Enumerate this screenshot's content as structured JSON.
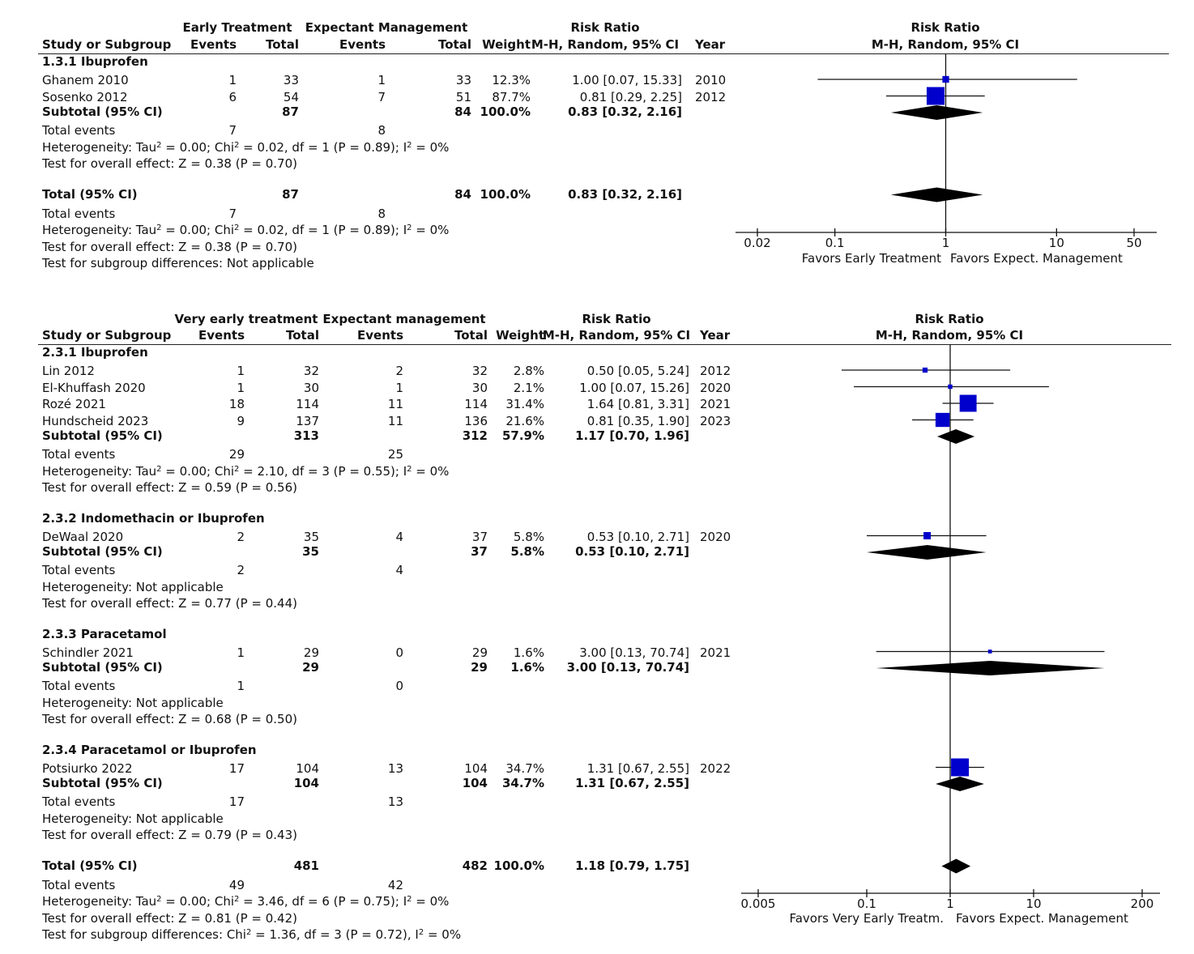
{
  "colors": {
    "square": "#0000cc",
    "diamond": "#000000",
    "line": "#111111"
  },
  "panel1": {
    "headers": {
      "group_label": "Study or Subgroup",
      "exp_group": "Early Treatment",
      "ctrl_group": "Expectant Management",
      "events": "Events",
      "total": "Total",
      "weight": "Weight",
      "rr_title": "Risk Ratio",
      "rr_method": "M-H, Random, 95% CI",
      "year": "Year",
      "plot_title": "Risk Ratio",
      "plot_method": "M-H, Random, 95% CI"
    },
    "subgroups": [
      {
        "title": "1.3.1 Ibuprofen",
        "studies": [
          {
            "name": "Ghanem 2010",
            "e_events": "1",
            "e_total": "33",
            "c_events": "1",
            "c_total": "33",
            "weight": "12.3%",
            "ci": "1.00 [0.07, 15.33]",
            "year": "2010"
          },
          {
            "name": "Sosenko 2012",
            "e_events": "6",
            "e_total": "54",
            "c_events": "7",
            "c_total": "51",
            "weight": "87.7%",
            "ci": "0.81 [0.29, 2.25]",
            "year": "2012"
          }
        ],
        "subtotal": {
          "label": "Subtotal (95% CI)",
          "e_total": "87",
          "c_total": "84",
          "weight": "100.0%",
          "ci": "0.83 [0.32, 2.16]"
        },
        "events_label": "Total events",
        "e_events": "7",
        "c_events": "8",
        "heterogeneity": "Heterogeneity: Tau² = 0.00; Chi² = 0.02, df = 1 (P = 0.89); I² = 0%",
        "overall": "Test for overall effect: Z = 0.38 (P = 0.70)"
      }
    ],
    "total": {
      "label": "Total (95% CI)",
      "e_total": "87",
      "c_total": "84",
      "weight": "100.0%",
      "ci": "0.83 [0.32, 2.16]"
    },
    "total_events_label": "Total events",
    "total_e_events": "7",
    "total_c_events": "8",
    "total_heterogeneity": "Heterogeneity: Tau² = 0.00; Chi² = 0.02, df = 1 (P = 0.89); I² = 0%",
    "total_overall": "Test for overall effect: Z = 0.38 (P = 0.70)",
    "subgroup_diff": "Test for subgroup differences: Not applicable",
    "axis_ticks": [
      "0.02",
      "0.1",
      "1",
      "10",
      "50"
    ],
    "favors_left": "Favors Early Treatment",
    "favors_right": "Favors Expect. Management"
  },
  "panel2": {
    "headers": {
      "group_label": "Study or Subgroup",
      "exp_group": "Very early treatment",
      "ctrl_group": "Expectant management",
      "events": "Events",
      "total": "Total",
      "weight": "Weight",
      "rr_title": "Risk Ratio",
      "rr_method": "M-H, Random, 95% CI",
      "year": "Year",
      "plot_title": "Risk Ratio",
      "plot_method": "M-H, Random, 95% CI"
    },
    "subgroups": [
      {
        "title": "2.3.1 Ibuprofen",
        "studies": [
          {
            "name": "Lin 2012",
            "e_events": "1",
            "e_total": "32",
            "c_events": "2",
            "c_total": "32",
            "weight": "2.8%",
            "ci": "0.50 [0.05, 5.24]",
            "year": "2012"
          },
          {
            "name": "El-Khuffash 2020",
            "e_events": "1",
            "e_total": "30",
            "c_events": "1",
            "c_total": "30",
            "weight": "2.1%",
            "ci": "1.00 [0.07, 15.26]",
            "year": "2020"
          },
          {
            "name": "Rozé 2021",
            "e_events": "18",
            "e_total": "114",
            "c_events": "11",
            "c_total": "114",
            "weight": "31.4%",
            "ci": "1.64 [0.81, 3.31]",
            "year": "2021"
          },
          {
            "name": "Hundscheid 2023",
            "e_events": "9",
            "e_total": "137",
            "c_events": "11",
            "c_total": "136",
            "weight": "21.6%",
            "ci": "0.81 [0.35, 1.90]",
            "year": "2023"
          }
        ],
        "subtotal": {
          "label": "Subtotal (95% CI)",
          "e_total": "313",
          "c_total": "312",
          "weight": "57.9%",
          "ci": "1.17 [0.70, 1.96]"
        },
        "events_label": "Total events",
        "e_events": "29",
        "c_events": "25",
        "heterogeneity": "Heterogeneity: Tau² = 0.00; Chi² = 2.10, df = 3 (P = 0.55); I² = 0%",
        "overall": "Test for overall effect: Z = 0.59 (P = 0.56)"
      },
      {
        "title": "2.3.2 Indomethacin or Ibuprofen",
        "studies": [
          {
            "name": "DeWaal 2020",
            "e_events": "2",
            "e_total": "35",
            "c_events": "4",
            "c_total": "37",
            "weight": "5.8%",
            "ci": "0.53 [0.10, 2.71]",
            "year": "2020"
          }
        ],
        "subtotal": {
          "label": "Subtotal (95% CI)",
          "e_total": "35",
          "c_total": "37",
          "weight": "5.8%",
          "ci": "0.53 [0.10, 2.71]"
        },
        "events_label": "Total events",
        "e_events": "2",
        "c_events": "4",
        "heterogeneity": "Heterogeneity: Not applicable",
        "overall": "Test for overall effect: Z = 0.77 (P = 0.44)"
      },
      {
        "title": "2.3.3 Paracetamol",
        "studies": [
          {
            "name": "Schindler 2021",
            "e_events": "1",
            "e_total": "29",
            "c_events": "0",
            "c_total": "29",
            "weight": "1.6%",
            "ci": "3.00 [0.13, 70.74]",
            "year": "2021"
          }
        ],
        "subtotal": {
          "label": "Subtotal (95% CI)",
          "e_total": "29",
          "c_total": "29",
          "weight": "1.6%",
          "ci": "3.00 [0.13, 70.74]"
        },
        "events_label": "Total events",
        "e_events": "1",
        "c_events": "0",
        "heterogeneity": "Heterogeneity: Not applicable",
        "overall": "Test for overall effect: Z = 0.68 (P = 0.50)"
      },
      {
        "title": "2.3.4 Paracetamol or Ibuprofen",
        "studies": [
          {
            "name": "Potsiurko 2022",
            "e_events": "17",
            "e_total": "104",
            "c_events": "13",
            "c_total": "104",
            "weight": "34.7%",
            "ci": "1.31 [0.67, 2.55]",
            "year": "2022"
          }
        ],
        "subtotal": {
          "label": "Subtotal (95% CI)",
          "e_total": "104",
          "c_total": "104",
          "weight": "34.7%",
          "ci": "1.31 [0.67, 2.55]"
        },
        "events_label": "Total events",
        "e_events": "17",
        "c_events": "13",
        "heterogeneity": "Heterogeneity: Not applicable",
        "overall": "Test for overall effect: Z = 0.79 (P = 0.43)"
      }
    ],
    "total": {
      "label": "Total (95% CI)",
      "e_total": "481",
      "c_total": "482",
      "weight": "100.0%",
      "ci": "1.18 [0.79, 1.75]"
    },
    "total_events_label": "Total events",
    "total_e_events": "49",
    "total_c_events": "42",
    "total_heterogeneity": "Heterogeneity: Tau² = 0.00; Chi² = 3.46, df = 6 (P = 0.75); I² = 0%",
    "total_overall": "Test for overall effect: Z = 0.81 (P = 0.42)",
    "subgroup_diff": "Test for subgroup differences: Chi² = 1.36, df = 3 (P = 0.72), I² = 0%",
    "axis_ticks": [
      "0.005",
      "0.1",
      "1",
      "10",
      "200"
    ],
    "favors_left": "Favors Very Early Treatm.",
    "favors_right": "Favors Expect. Management"
  },
  "chart_data": [
    {
      "type": "forest",
      "title": "Risk Ratio M-H, Random, 95% CI",
      "x_scale": "log",
      "xlim": [
        0.02,
        50
      ],
      "x_ticks": [
        0.02,
        0.1,
        1,
        10,
        50
      ],
      "xlabel_left": "Favors Early Treatment",
      "xlabel_right": "Favors Expect. Management",
      "studies": [
        {
          "name": "Ghanem 2010",
          "rr": 1.0,
          "lo": 0.07,
          "hi": 15.33,
          "weight": 12.3
        },
        {
          "name": "Sosenko 2012",
          "rr": 0.81,
          "lo": 0.29,
          "hi": 2.25,
          "weight": 87.7
        }
      ],
      "subtotals": [
        {
          "name": "Subtotal (95% CI)",
          "rr": 0.83,
          "lo": 0.32,
          "hi": 2.16
        }
      ],
      "overall": {
        "name": "Total (95% CI)",
        "rr": 0.83,
        "lo": 0.32,
        "hi": 2.16
      }
    },
    {
      "type": "forest",
      "title": "Risk Ratio M-H, Random, 95% CI",
      "x_scale": "log",
      "xlim": [
        0.005,
        200
      ],
      "x_ticks": [
        0.005,
        0.1,
        1,
        10,
        200
      ],
      "xlabel_left": "Favors Very Early Treatm.",
      "xlabel_right": "Favors Expect. Management",
      "studies": [
        {
          "name": "Lin 2012",
          "rr": 0.5,
          "lo": 0.05,
          "hi": 5.24,
          "weight": 2.8
        },
        {
          "name": "El-Khuffash 2020",
          "rr": 1.0,
          "lo": 0.07,
          "hi": 15.26,
          "weight": 2.1
        },
        {
          "name": "Rozé 2021",
          "rr": 1.64,
          "lo": 0.81,
          "hi": 3.31,
          "weight": 31.4
        },
        {
          "name": "Hundscheid 2023",
          "rr": 0.81,
          "lo": 0.35,
          "hi": 1.9,
          "weight": 21.6
        },
        {
          "name": "DeWaal 2020",
          "rr": 0.53,
          "lo": 0.1,
          "hi": 2.71,
          "weight": 5.8
        },
        {
          "name": "Schindler 2021",
          "rr": 3.0,
          "lo": 0.13,
          "hi": 70.74,
          "weight": 1.6
        },
        {
          "name": "Potsiurko 2022",
          "rr": 1.31,
          "lo": 0.67,
          "hi": 2.55,
          "weight": 34.7
        }
      ],
      "subtotals": [
        {
          "name": "2.3.1 Ibuprofen",
          "rr": 1.17,
          "lo": 0.7,
          "hi": 1.96
        },
        {
          "name": "2.3.2 Indomethacin or Ibuprofen",
          "rr": 0.53,
          "lo": 0.1,
          "hi": 2.71
        },
        {
          "name": "2.3.3 Paracetamol",
          "rr": 3.0,
          "lo": 0.13,
          "hi": 70.74
        },
        {
          "name": "2.3.4 Paracetamol or Ibuprofen",
          "rr": 1.31,
          "lo": 0.67,
          "hi": 2.55
        }
      ],
      "overall": {
        "name": "Total (95% CI)",
        "rr": 1.18,
        "lo": 0.79,
        "hi": 1.75
      }
    }
  ]
}
